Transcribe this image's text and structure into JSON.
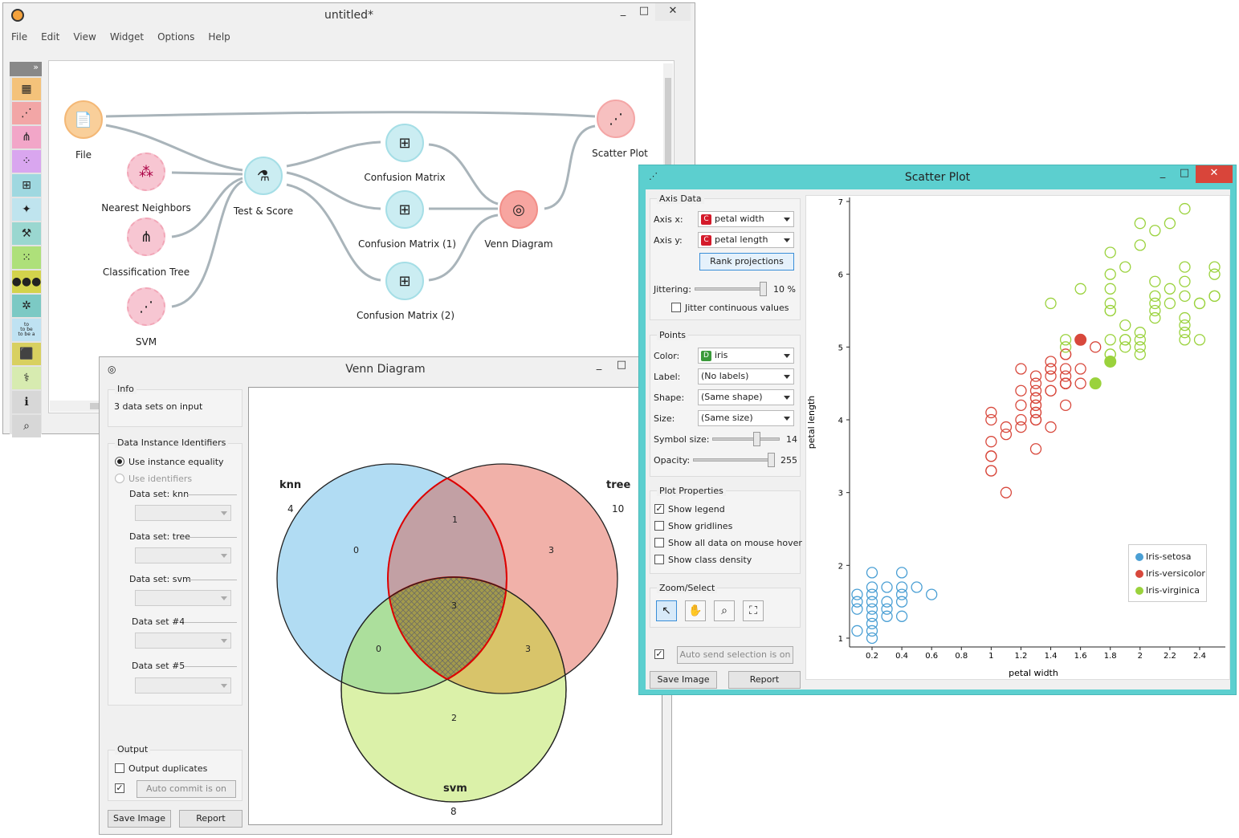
{
  "main": {
    "title": "untitled*",
    "menu": [
      "File",
      "Edit",
      "View",
      "Widget",
      "Options",
      "Help"
    ],
    "nodes": {
      "file": "File",
      "knn": "Nearest Neighbors",
      "tree": "Classification Tree",
      "svm": "SVM",
      "test": "Test & Score",
      "cm": "Confusion Matrix",
      "cm1": "Confusion Matrix (1)",
      "cm2": "Confusion Matrix (2)",
      "venn": "Venn Diagram",
      "scatter": "Scatter Plot"
    },
    "toolbox_more": "»",
    "toolbox_text_icon": "to\nto be\nto be a"
  },
  "venn": {
    "title": "Venn Diagram",
    "info_title": "Info",
    "info_text": "3 data sets on input",
    "ids_title": "Data Instance Identifiers",
    "use_equality": "Use instance equality",
    "use_identifiers": "Use identifiers",
    "ds_knn": "Data set: knn",
    "ds_tree": "Data set: tree",
    "ds_svm": "Data set: svm",
    "ds4": "Data set #4",
    "ds5": "Data set #5",
    "output_title": "Output",
    "output_dup": "Output duplicates",
    "auto_commit": "Auto commit is on",
    "save_image": "Save Image",
    "report": "Report",
    "sets": {
      "knn": {
        "name": "knn",
        "count": "4"
      },
      "tree": {
        "name": "tree",
        "count": "10"
      },
      "svm": {
        "name": "svm",
        "count": "8"
      }
    },
    "regions": {
      "knn_only": "0",
      "knn_tree": "1",
      "tree_only": "3",
      "all": "3",
      "knn_svm": "0",
      "tree_svm": "3",
      "svm_only": "2"
    },
    "colors": {
      "knn": "#a8d8f2",
      "tree": "#efa8a0",
      "svm": "#d7f0a0"
    }
  },
  "scatter": {
    "title": "Scatter Plot",
    "axis_data": "Axis Data",
    "axis_x_label": "Axis x:",
    "axis_x": "petal width",
    "axis_y_label": "Axis y:",
    "axis_y": "petal length",
    "rank": "Rank projections",
    "jittering": "Jittering:",
    "jitter_val": "10 %",
    "jitter_cont": "Jitter continuous values",
    "points": "Points",
    "color_label": "Color:",
    "color": "iris",
    "label_label": "Label:",
    "label": "(No labels)",
    "shape_label": "Shape:",
    "shape": "(Same shape)",
    "size_label": "Size:",
    "size": "(Same size)",
    "symbol_label": "Symbol size:",
    "symbol_val": "14",
    "opacity_label": "Opacity:",
    "opacity_val": "255",
    "plot_props": "Plot Properties",
    "show_legend": "Show legend",
    "show_grid": "Show gridlines",
    "show_all": "Show all data on mouse hover",
    "show_density": "Show class density",
    "zoom_select": "Zoom/Select",
    "auto_send": "Auto send selection is on",
    "save_image": "Save Image",
    "report": "Report",
    "badge_c": "C",
    "badge_d": "D"
  },
  "chart_data": {
    "type": "scatter",
    "xlabel": "petal width",
    "ylabel": "petal length",
    "xlim": [
      0.05,
      2.6
    ],
    "ylim": [
      0.9,
      7.1
    ],
    "xticks": [
      "0.2",
      "0.4",
      "0.6",
      "0.8",
      "1",
      "1.2",
      "1.4",
      "1.6",
      "1.8",
      "2",
      "2.2",
      "2.4"
    ],
    "yticks": [
      "1",
      "2",
      "3",
      "4",
      "5",
      "6",
      "7"
    ],
    "legend_position": "bottom-right",
    "series": [
      {
        "name": "Iris-setosa",
        "color": "#4a9fd4",
        "points": [
          [
            0.2,
            1.4
          ],
          [
            0.2,
            1.3
          ],
          [
            0.2,
            1.5
          ],
          [
            0.2,
            1.6
          ],
          [
            0.2,
            1.7
          ],
          [
            0.2,
            1.2
          ],
          [
            0.2,
            1.1
          ],
          [
            0.2,
            1.9
          ],
          [
            0.1,
            1.5
          ],
          [
            0.1,
            1.4
          ],
          [
            0.1,
            1.1
          ],
          [
            0.1,
            1.6
          ],
          [
            0.3,
            1.3
          ],
          [
            0.3,
            1.4
          ],
          [
            0.3,
            1.5
          ],
          [
            0.3,
            1.7
          ],
          [
            0.4,
            1.5
          ],
          [
            0.4,
            1.7
          ],
          [
            0.4,
            1.3
          ],
          [
            0.4,
            1.9
          ],
          [
            0.4,
            1.6
          ],
          [
            0.5,
            1.7
          ],
          [
            0.6,
            1.6
          ],
          [
            0.2,
            1.0
          ]
        ]
      },
      {
        "name": "Iris-versicolor",
        "color": "#d8483c",
        "points": [
          [
            1.4,
            4.7
          ],
          [
            1.5,
            4.5
          ],
          [
            1.5,
            4.9
          ],
          [
            1.3,
            4.0
          ],
          [
            1.5,
            4.6
          ],
          [
            1.3,
            4.5
          ],
          [
            1.6,
            4.7
          ],
          [
            1.0,
            3.3
          ],
          [
            1.3,
            4.6
          ],
          [
            1.4,
            3.9
          ],
          [
            1.0,
            3.5
          ],
          [
            1.5,
            4.2
          ],
          [
            1.0,
            4.0
          ],
          [
            1.4,
            4.7
          ],
          [
            1.3,
            3.6
          ],
          [
            1.4,
            4.4
          ],
          [
            1.5,
            4.5
          ],
          [
            1.0,
            4.1
          ],
          [
            1.5,
            4.5
          ],
          [
            1.1,
            3.9
          ],
          [
            1.8,
            4.8
          ],
          [
            1.3,
            4.0
          ],
          [
            1.5,
            4.9
          ],
          [
            1.2,
            4.7
          ],
          [
            1.3,
            4.3
          ],
          [
            1.4,
            4.4
          ],
          [
            1.4,
            4.8
          ],
          [
            1.7,
            5.0
          ],
          [
            1.5,
            4.5
          ],
          [
            1.0,
            3.5
          ],
          [
            1.1,
            3.8
          ],
          [
            1.0,
            3.7
          ],
          [
            1.2,
            3.9
          ],
          [
            1.6,
            5.1
          ],
          [
            1.5,
            4.5
          ],
          [
            1.6,
            4.5
          ],
          [
            1.5,
            4.7
          ],
          [
            1.3,
            4.4
          ],
          [
            1.3,
            4.1
          ],
          [
            1.3,
            4.0
          ],
          [
            1.2,
            4.4
          ],
          [
            1.4,
            4.6
          ],
          [
            1.2,
            4.0
          ],
          [
            1.0,
            3.3
          ],
          [
            1.3,
            4.2
          ],
          [
            1.2,
            4.2
          ],
          [
            1.3,
            4.2
          ],
          [
            1.3,
            4.3
          ],
          [
            1.1,
            3.0
          ],
          [
            1.3,
            4.1
          ]
        ]
      },
      {
        "name": "Iris-virginica",
        "color": "#9ad23c",
        "points": [
          [
            2.5,
            6.0
          ],
          [
            1.9,
            5.1
          ],
          [
            2.1,
            5.9
          ],
          [
            1.8,
            5.6
          ],
          [
            2.2,
            5.8
          ],
          [
            2.1,
            6.6
          ],
          [
            1.7,
            4.5
          ],
          [
            1.8,
            6.3
          ],
          [
            1.8,
            5.8
          ],
          [
            2.5,
            6.1
          ],
          [
            2.0,
            5.1
          ],
          [
            1.9,
            5.3
          ],
          [
            2.1,
            5.5
          ],
          [
            2.0,
            5.0
          ],
          [
            2.4,
            5.1
          ],
          [
            2.3,
            5.3
          ],
          [
            1.8,
            5.5
          ],
          [
            2.2,
            6.7
          ],
          [
            2.3,
            6.9
          ],
          [
            1.5,
            5.0
          ],
          [
            2.3,
            5.7
          ],
          [
            2.0,
            4.9
          ],
          [
            2.0,
            6.7
          ],
          [
            1.8,
            4.9
          ],
          [
            2.1,
            5.7
          ],
          [
            1.8,
            6.0
          ],
          [
            1.8,
            4.8
          ],
          [
            1.8,
            4.9
          ],
          [
            2.1,
            5.6
          ],
          [
            1.6,
            5.8
          ],
          [
            1.9,
            6.1
          ],
          [
            2.0,
            6.4
          ],
          [
            2.2,
            5.6
          ],
          [
            1.5,
            5.1
          ],
          [
            1.4,
            5.6
          ],
          [
            2.3,
            6.1
          ],
          [
            2.4,
            5.6
          ],
          [
            1.8,
            5.5
          ],
          [
            2.1,
            5.4
          ],
          [
            2.4,
            5.6
          ],
          [
            2.3,
            5.1
          ],
          [
            1.9,
            5.1
          ],
          [
            2.3,
            5.9
          ],
          [
            2.5,
            5.7
          ],
          [
            2.3,
            5.2
          ],
          [
            1.9,
            5.0
          ],
          [
            2.0,
            5.2
          ],
          [
            2.3,
            5.4
          ],
          [
            1.8,
            5.1
          ],
          [
            2.5,
            5.7
          ]
        ]
      }
    ],
    "highlighted": [
      {
        "series": "Iris-versicolor",
        "x": 1.6,
        "y": 5.1
      },
      {
        "series": "Iris-virginica",
        "x": 1.7,
        "y": 4.5
      },
      {
        "series": "Iris-virginica",
        "x": 1.8,
        "y": 4.8
      }
    ]
  }
}
